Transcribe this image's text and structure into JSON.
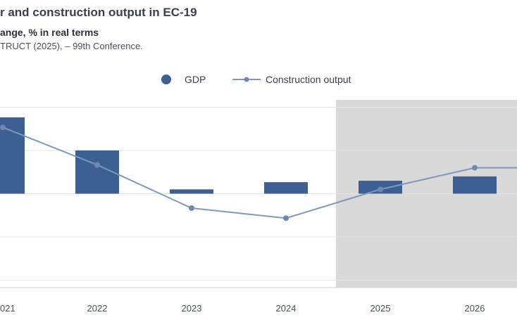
{
  "header": {
    "title": "r and construction output in EC-19",
    "subtitle": "ange, % in real terms",
    "source": "TRUCT (2025), – 99th Conference."
  },
  "chart_data": {
    "type": "bar",
    "categories": [
      "021",
      "2022",
      "2023",
      "2024",
      "2025",
      "2026"
    ],
    "series": [
      {
        "name": "GDP",
        "type": "bar",
        "color": "#3d5f91",
        "values": [
          5.3,
          3.0,
          0.3,
          0.8,
          0.9,
          1.2
        ]
      },
      {
        "name": "Construction output",
        "type": "line",
        "color": "#7f98bd",
        "values": [
          4.6,
          2.0,
          -1.0,
          -1.7,
          0.3,
          1.8,
          1.8
        ]
      }
    ],
    "x": [
      "021",
      "2022",
      "2023",
      "2024",
      "2025",
      "2026",
      ""
    ],
    "ylim": [
      -6.5,
      6.5
    ],
    "forecast_shading": {
      "from": "2025",
      "color": "#d9d9d9"
    },
    "grid": true,
    "legend": "top-center"
  }
}
